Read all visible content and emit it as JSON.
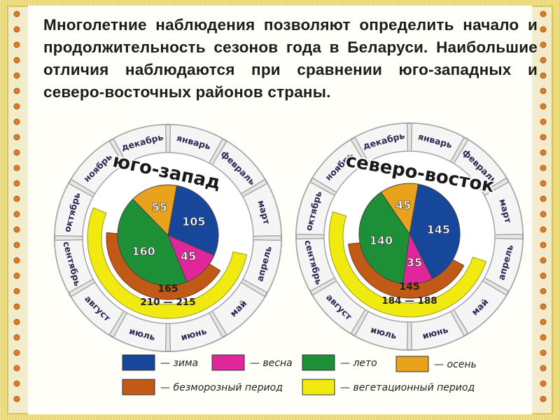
{
  "intro_text": "Многолетние наблюдения позволяют определить начало и продолжительность сезонов года в Беларуси. Наибольшие отличия наблюдаются при сравнении юго-западных и северо-восточных районов страны.",
  "months": [
    "январь",
    "февраль",
    "март",
    "апрель",
    "май",
    "июнь",
    "июль",
    "август",
    "сентябрь",
    "октябрь",
    "ноябрь",
    "декабрь"
  ],
  "colors": {
    "winter": "#17479a",
    "spring": "#e0269a",
    "summer": "#1d8f36",
    "autumn": "#e8a21b",
    "frostfree": "#c15a16",
    "vegetation": "#f0ea10",
    "ring": "#dcdcdc"
  },
  "chart_data": [
    {
      "type": "pie",
      "title": "юго-запад",
      "series": [
        {
          "name": "зима",
          "value": 105
        },
        {
          "name": "весна",
          "value": 45
        },
        {
          "name": "лето",
          "value": 160
        },
        {
          "name": "осень",
          "value": 55
        }
      ],
      "frostfree_label": "165",
      "vegetation_label": "210 — 215"
    },
    {
      "type": "pie",
      "title": "северо-восток",
      "series": [
        {
          "name": "зима",
          "value": 145
        },
        {
          "name": "весна",
          "value": 35
        },
        {
          "name": "лето",
          "value": 140
        },
        {
          "name": "осень",
          "value": 45
        }
      ],
      "frostfree_label": "145",
      "vegetation_label": "184 — 188"
    }
  ],
  "legend": [
    {
      "key": "winter",
      "label": "— зима"
    },
    {
      "key": "spring",
      "label": "— весна"
    },
    {
      "key": "summer",
      "label": "— лето"
    },
    {
      "key": "autumn",
      "label": "— осень"
    },
    {
      "key": "frostfree",
      "label": "— безморозный период"
    },
    {
      "key": "vegetation",
      "label": "— вегетационный период"
    }
  ]
}
